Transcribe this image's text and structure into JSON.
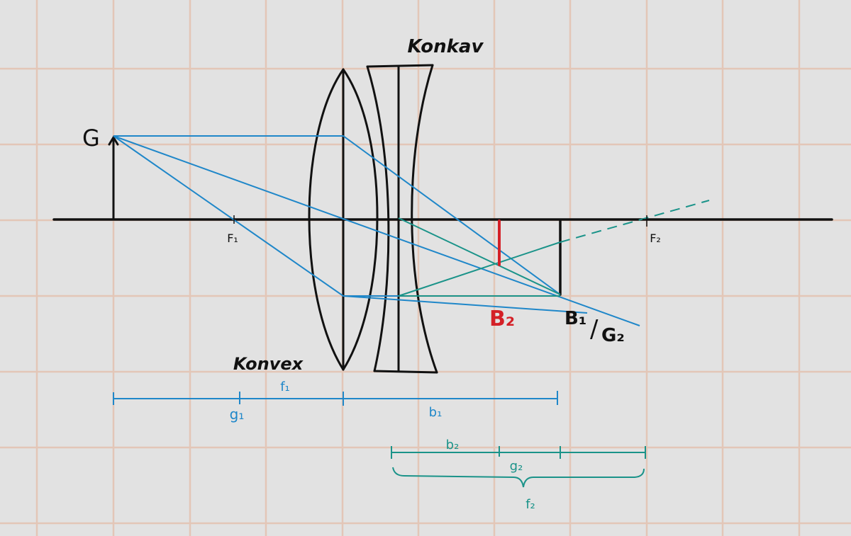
{
  "lens_labels": {
    "concave": "Konkav",
    "convex": "Konvex"
  },
  "points": {
    "object": "G",
    "f1": "F₁",
    "f2": "F₂",
    "b1_g2_part1": "B₁",
    "b1_g2_slash": "/",
    "b1_g2_part2": "G₂",
    "b2": "B₂"
  },
  "dimensions": {
    "f1": "f₁",
    "g1": "g₁",
    "b1": "b₁",
    "b2": "b₂",
    "g2": "g₂",
    "f2": "f₂"
  },
  "colors": {
    "background": "#e2e2e2",
    "grid": "#e4c2b0",
    "ink": "#111111",
    "blue_ray": "#1f87c9",
    "teal_ray": "#1a9389",
    "red_image": "#d42027"
  }
}
